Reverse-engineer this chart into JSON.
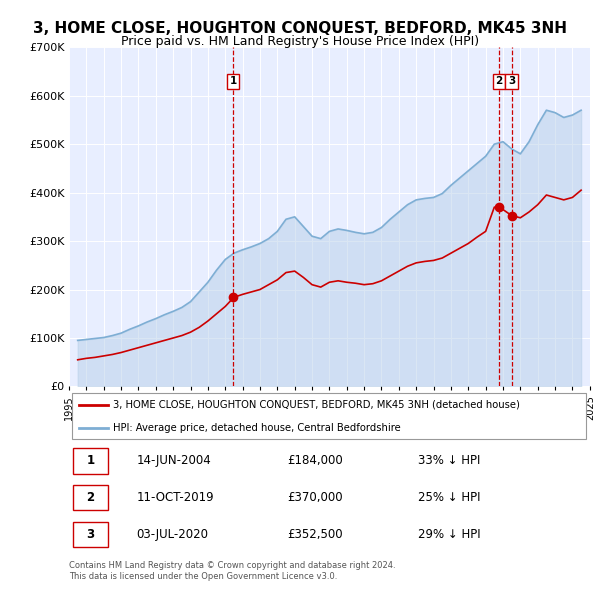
{
  "title": "3, HOME CLOSE, HOUGHTON CONQUEST, BEDFORD, MK45 3NH",
  "subtitle": "Price paid vs. HM Land Registry's House Price Index (HPI)",
  "title_fontsize": 11,
  "subtitle_fontsize": 9,
  "plot_bg_color": "#e8eeff",
  "red_color": "#cc0000",
  "blue_color": "#7eaed4",
  "blue_fill_color": "#b8d0e8",
  "ylim": [
    0,
    700000
  ],
  "yticks": [
    0,
    100000,
    200000,
    300000,
    400000,
    500000,
    600000,
    700000
  ],
  "ytick_labels": [
    "£0",
    "£100K",
    "£200K",
    "£300K",
    "£400K",
    "£500K",
    "£600K",
    "£700K"
  ],
  "sale_dates": [
    2004.45,
    2019.78,
    2020.5
  ],
  "sale_prices": [
    184000,
    370000,
    352500
  ],
  "sale_labels": [
    "1",
    "2",
    "3"
  ],
  "vline_color": "#cc0000",
  "legend_line1": "3, HOME CLOSE, HOUGHTON CONQUEST, BEDFORD, MK45 3NH (detached house)",
  "legend_line2": "HPI: Average price, detached house, Central Bedfordshire",
  "table_rows": [
    [
      "1",
      "14-JUN-2004",
      "£184,000",
      "33% ↓ HPI"
    ],
    [
      "2",
      "11-OCT-2019",
      "£370,000",
      "25% ↓ HPI"
    ],
    [
      "3",
      "03-JUL-2020",
      "£352,500",
      "29% ↓ HPI"
    ]
  ],
  "footnote": "Contains HM Land Registry data © Crown copyright and database right 2024.\nThis data is licensed under the Open Government Licence v3.0.",
  "hpi_years": [
    1995.5,
    1996.0,
    1996.5,
    1997.0,
    1997.5,
    1998.0,
    1998.5,
    1999.0,
    1999.5,
    2000.0,
    2000.5,
    2001.0,
    2001.5,
    2002.0,
    2002.5,
    2003.0,
    2003.5,
    2004.0,
    2004.5,
    2005.0,
    2005.5,
    2006.0,
    2006.5,
    2007.0,
    2007.5,
    2008.0,
    2008.5,
    2009.0,
    2009.5,
    2010.0,
    2010.5,
    2011.0,
    2011.5,
    2012.0,
    2012.5,
    2013.0,
    2013.5,
    2014.0,
    2014.5,
    2015.0,
    2015.5,
    2016.0,
    2016.5,
    2017.0,
    2017.5,
    2018.0,
    2018.5,
    2019.0,
    2019.5,
    2020.0,
    2020.5,
    2021.0,
    2021.5,
    2022.0,
    2022.5,
    2023.0,
    2023.5,
    2024.0,
    2024.5
  ],
  "hpi_values": [
    95000,
    97000,
    99000,
    101000,
    105000,
    110000,
    118000,
    125000,
    133000,
    140000,
    148000,
    155000,
    163000,
    175000,
    195000,
    215000,
    240000,
    262000,
    275000,
    282000,
    288000,
    295000,
    305000,
    320000,
    345000,
    350000,
    330000,
    310000,
    305000,
    320000,
    325000,
    322000,
    318000,
    315000,
    318000,
    328000,
    345000,
    360000,
    375000,
    385000,
    388000,
    390000,
    398000,
    415000,
    430000,
    445000,
    460000,
    475000,
    500000,
    505000,
    490000,
    480000,
    505000,
    540000,
    570000,
    565000,
    555000,
    560000,
    570000
  ],
  "red_years": [
    1995.5,
    1996.0,
    1996.5,
    1997.0,
    1997.5,
    1998.0,
    1998.5,
    1999.0,
    1999.5,
    2000.0,
    2000.5,
    2001.0,
    2001.5,
    2002.0,
    2002.5,
    2003.0,
    2003.5,
    2004.0,
    2004.5,
    2005.0,
    2005.5,
    2006.0,
    2006.5,
    2007.0,
    2007.5,
    2008.0,
    2008.5,
    2009.0,
    2009.5,
    2010.0,
    2010.5,
    2011.0,
    2011.5,
    2012.0,
    2012.5,
    2013.0,
    2013.5,
    2014.0,
    2014.5,
    2015.0,
    2015.5,
    2016.0,
    2016.5,
    2017.0,
    2017.5,
    2018.0,
    2018.5,
    2019.0,
    2019.5,
    2020.0,
    2020.5,
    2021.0,
    2021.5,
    2022.0,
    2022.5,
    2023.0,
    2023.5,
    2024.0,
    2024.5
  ],
  "red_values": [
    55000,
    58000,
    60000,
    63000,
    66000,
    70000,
    75000,
    80000,
    85000,
    90000,
    95000,
    100000,
    105000,
    112000,
    122000,
    135000,
    150000,
    165000,
    184000,
    190000,
    195000,
    200000,
    210000,
    220000,
    235000,
    238000,
    225000,
    210000,
    205000,
    215000,
    218000,
    215000,
    213000,
    210000,
    212000,
    218000,
    228000,
    238000,
    248000,
    255000,
    258000,
    260000,
    265000,
    275000,
    285000,
    295000,
    308000,
    320000,
    370000,
    365000,
    352500,
    348000,
    360000,
    375000,
    395000,
    390000,
    385000,
    390000,
    405000
  ]
}
